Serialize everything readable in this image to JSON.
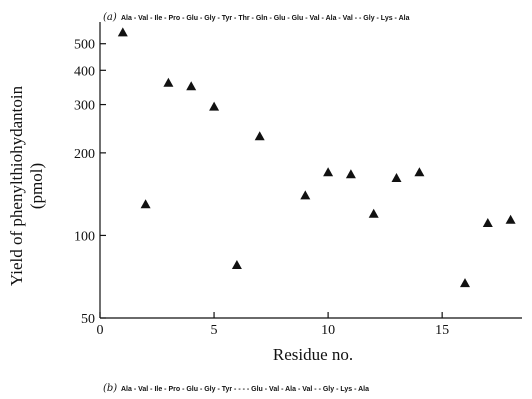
{
  "chart_data": {
    "type": "scatter",
    "title": "",
    "panel_a_label": "(a)",
    "panel_a_sequence": "Ala - Val -  Ile - Pro - Glu - Gly - Tyr - Thr - Gln - Glu - Glu - Val - Ala - Val -        - Gly - Lys - Ala",
    "panel_b_label": "(b)",
    "panel_b_sequence": "Ala - Val -  Ile - Pro - Glu - Gly - Tyr -     -     -      - Glu - Val - Ala - Val -        - Gly - Lys - Ala",
    "xlabel": "Residue no.",
    "ylabel_line1": "Yield of phenylthiohydantoin",
    "ylabel_line2": "(pmol)",
    "xlim": [
      0,
      18.5
    ],
    "ylim": [
      50,
      600
    ],
    "yscale": "log",
    "x_ticks": [
      0,
      5,
      10,
      15
    ],
    "x_tick_labels": [
      "0",
      "5",
      "10",
      "15"
    ],
    "y_ticks": [
      50,
      100,
      200,
      300,
      400,
      500
    ],
    "y_tick_labels": [
      "50",
      "100",
      "200",
      "300",
      "400",
      "500"
    ],
    "marker": "triangle",
    "grid": false,
    "points": [
      {
        "x": 1,
        "y": 550
      },
      {
        "x": 2,
        "y": 130
      },
      {
        "x": 3,
        "y": 360
      },
      {
        "x": 4,
        "y": 350
      },
      {
        "x": 5,
        "y": 295
      },
      {
        "x": 6,
        "y": 78
      },
      {
        "x": 7,
        "y": 230
      },
      {
        "x": 9,
        "y": 140
      },
      {
        "x": 10,
        "y": 170
      },
      {
        "x": 11,
        "y": 167
      },
      {
        "x": 12,
        "y": 120
      },
      {
        "x": 13,
        "y": 162
      },
      {
        "x": 14,
        "y": 170
      },
      {
        "x": 16,
        "y": 67
      },
      {
        "x": 17,
        "y": 111
      },
      {
        "x": 18,
        "y": 114
      }
    ]
  }
}
